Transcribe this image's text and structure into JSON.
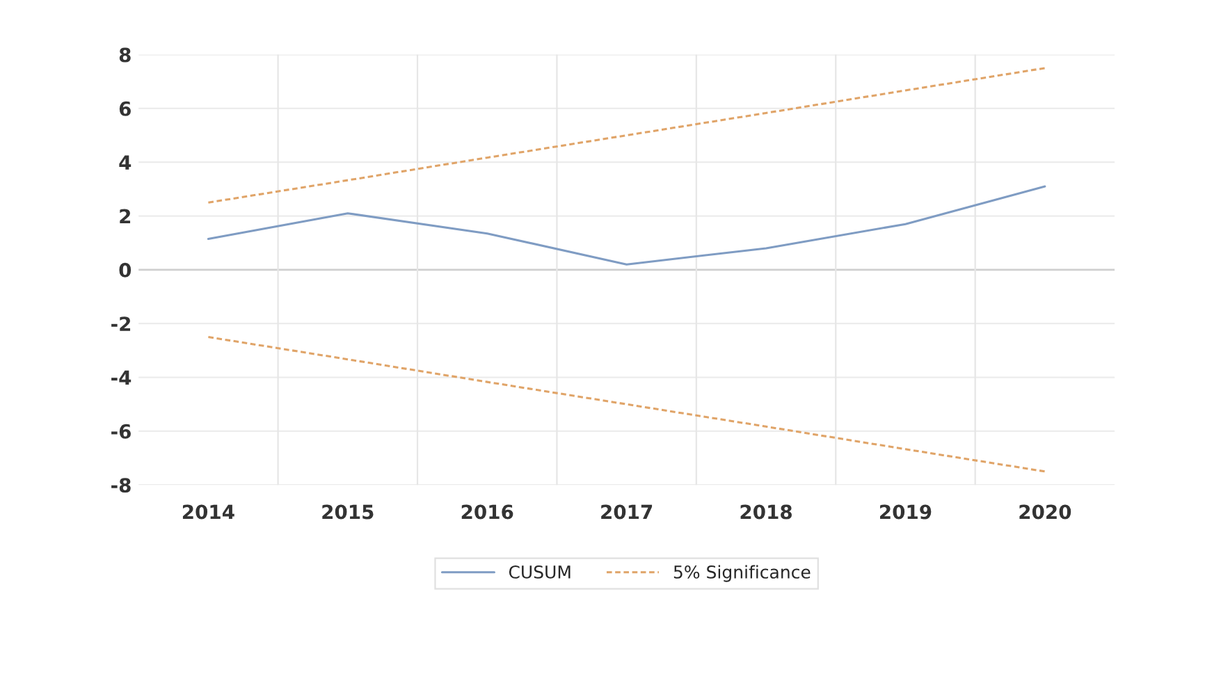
{
  "chart_data": {
    "type": "line",
    "categories": [
      "2014",
      "2015",
      "2016",
      "2017",
      "2018",
      "2019",
      "2020"
    ],
    "series": [
      {
        "name": "CUSUM",
        "color": "#7f9cc3",
        "line_style": "solid",
        "values": [
          1.15,
          2.1,
          1.35,
          0.2,
          0.8,
          1.7,
          3.1
        ]
      },
      {
        "name": "5% Significance",
        "color": "#e0a468",
        "line_style": "dashed",
        "values": [
          2.5,
          3.33,
          4.17,
          5.0,
          5.83,
          6.67,
          7.5
        ]
      },
      {
        "color": "#e0a468",
        "line_style": "dashed",
        "values": [
          -2.5,
          -3.33,
          -4.17,
          -5.0,
          -5.83,
          -6.67,
          -7.5
        ]
      }
    ],
    "ylim": [
      -8,
      8
    ],
    "yticks": [
      -8,
      -6,
      -4,
      -2,
      0,
      2,
      4,
      6,
      8
    ],
    "grid": true,
    "legend": "bottom",
    "marker": "none"
  }
}
